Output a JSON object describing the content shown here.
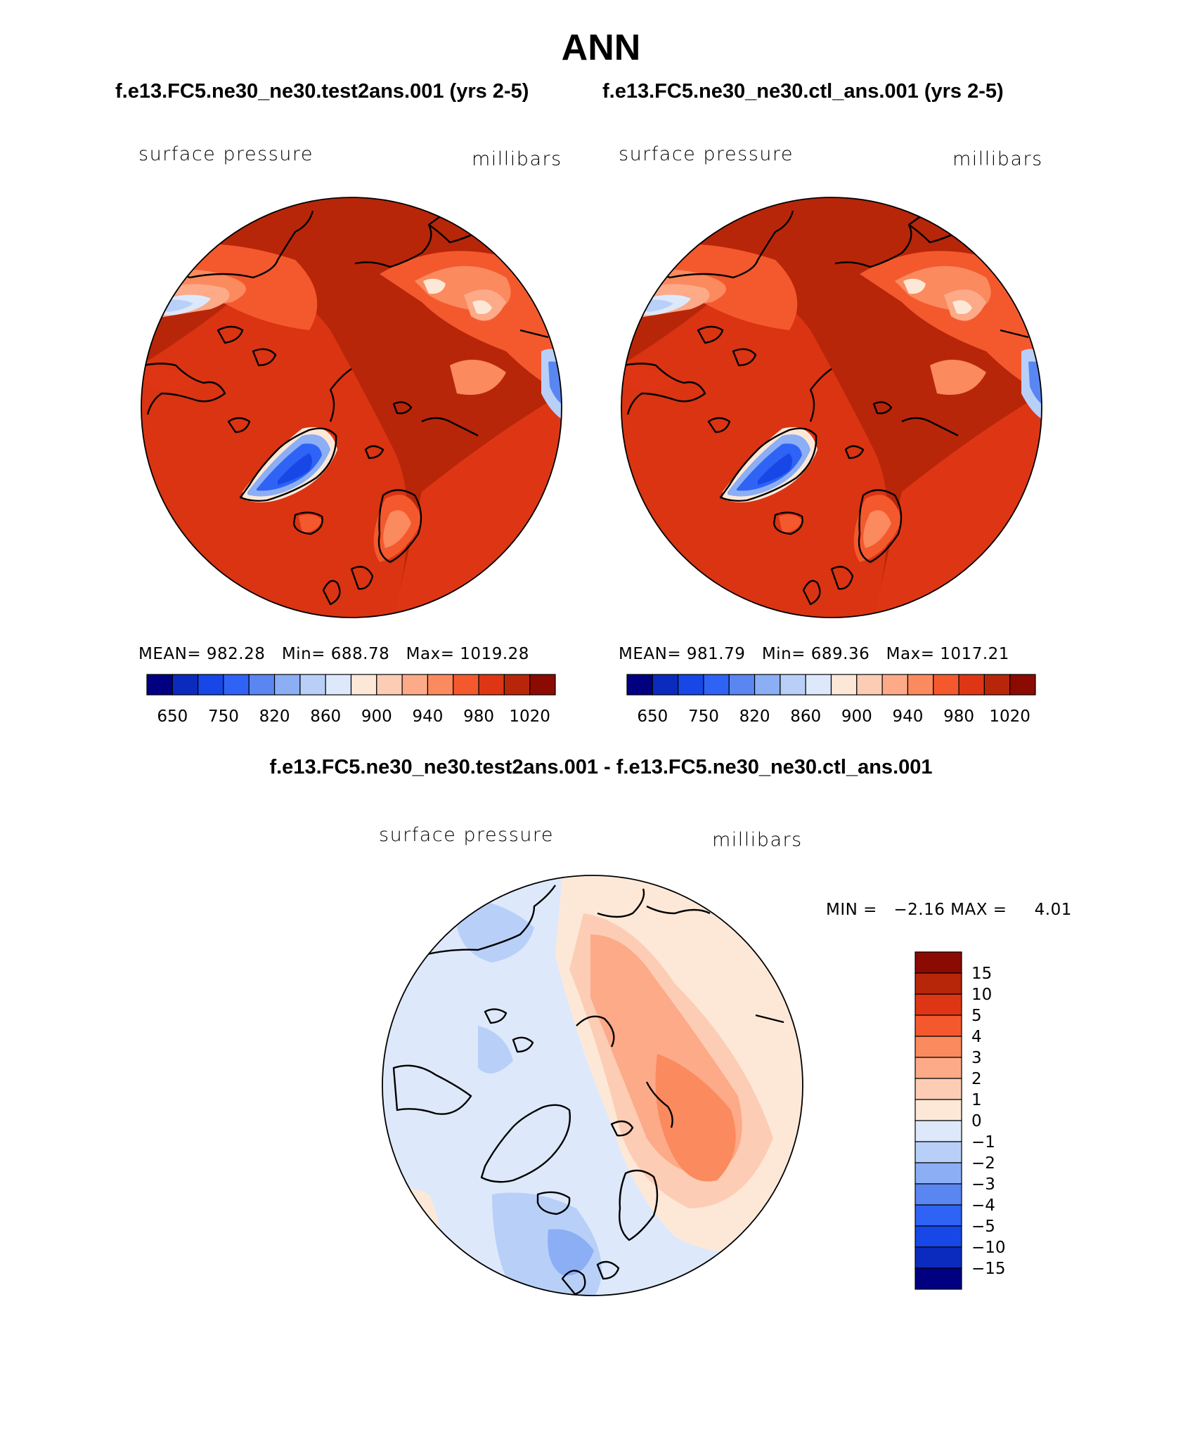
{
  "figure": {
    "title": "ANN",
    "left_case": "f.e13.FC5.ne30_ne30.test2ans.001 (yrs 2-5)",
    "right_case": "f.e13.FC5.ne30_ne30.ctl_ans.001 (yrs 2-5)",
    "diff_title": "f.e13.FC5.ne30_ne30.test2ans.001 - f.e13.FC5.ne30_ne30.ctl_ans.001"
  },
  "chart_data": [
    {
      "type": "heatmap",
      "title": "f.e13.FC5.ne30_ne30.test2ans.001 (yrs 2-5)",
      "variable": "surface pressure",
      "units": "millibars",
      "projection": "polar stereographic (north)",
      "stats": {
        "mean_label": "MEAN=",
        "mean": "982.28",
        "min_label": "Min=",
        "min": "688.78",
        "max_label": "Max=",
        "max": "1019.28"
      },
      "levels": [
        650,
        700,
        750,
        800,
        820,
        840,
        860,
        880,
        900,
        920,
        940,
        960,
        980,
        1000,
        1020
      ],
      "level_labels": [
        "650",
        "750",
        "820",
        "860",
        "900",
        "940",
        "980",
        "1020"
      ],
      "colors": [
        "#000080",
        "#0a2bbd",
        "#1747e6",
        "#2f63f5",
        "#5a86f2",
        "#8caef5",
        "#b8d0f8",
        "#dde9fb",
        "#fde8d8",
        "#fccdb4",
        "#fcaa88",
        "#fb8a5e",
        "#f4592e",
        "#de3614",
        "#b82609",
        "#8b0a02"
      ]
    },
    {
      "type": "heatmap",
      "title": "f.e13.FC5.ne30_ne30.ctl_ans.001 (yrs 2-5)",
      "variable": "surface pressure",
      "units": "millibars",
      "projection": "polar stereographic (north)",
      "stats": {
        "mean_label": "MEAN=",
        "mean": "981.79",
        "min_label": "Min=",
        "min": "689.36",
        "max_label": "Max=",
        "max": "1017.21"
      },
      "levels": [
        650,
        700,
        750,
        800,
        820,
        840,
        860,
        880,
        900,
        920,
        940,
        960,
        980,
        1000,
        1020
      ],
      "level_labels": [
        "650",
        "750",
        "820",
        "860",
        "900",
        "940",
        "980",
        "1020"
      ],
      "colors": [
        "#000080",
        "#0a2bbd",
        "#1747e6",
        "#2f63f5",
        "#5a86f2",
        "#8caef5",
        "#b8d0f8",
        "#dde9fb",
        "#fde8d8",
        "#fccdb4",
        "#fcaa88",
        "#fb8a5e",
        "#f4592e",
        "#de3614",
        "#b82609",
        "#8b0a02"
      ]
    },
    {
      "type": "heatmap",
      "title": "f.e13.FC5.ne30_ne30.test2ans.001 - f.e13.FC5.ne30_ne30.ctl_ans.001",
      "variable": "surface pressure",
      "units": "millibars",
      "projection": "polar stereographic (north)",
      "stats": {
        "min_label": "MIN =",
        "min": "−2.16",
        "max_label": "MAX =",
        "max": "4.01"
      },
      "levels": [
        -15,
        -10,
        -5,
        -4,
        -3,
        -2,
        -1,
        0,
        1,
        2,
        3,
        4,
        5,
        10,
        15
      ],
      "level_labels": [
        "15",
        "10",
        "5",
        "4",
        "3",
        "2",
        "1",
        "0",
        "−1",
        "−2",
        "−3",
        "−4",
        "−5",
        "−10",
        "−15"
      ],
      "colors": [
        "#8b0a02",
        "#b82609",
        "#de3614",
        "#f4592e",
        "#fb8a5e",
        "#fcaa88",
        "#fccdb4",
        "#fde8d8",
        "#dde9fb",
        "#b8d0f8",
        "#8caef5",
        "#5a86f2",
        "#2f63f5",
        "#1747e6",
        "#0a2bbd",
        "#000080"
      ]
    }
  ]
}
